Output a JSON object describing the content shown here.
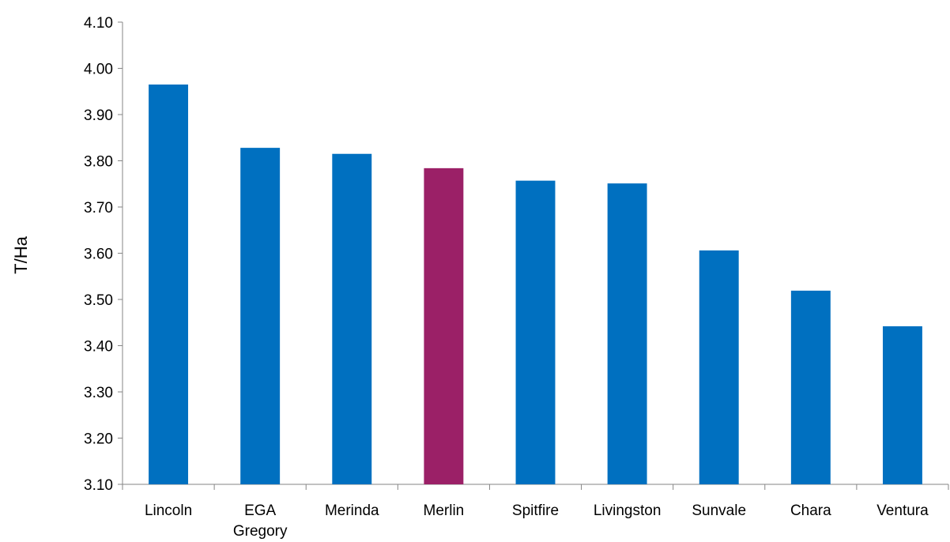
{
  "chart_data": {
    "type": "bar",
    "title": "",
    "xlabel": "",
    "ylabel": "T/Ha",
    "ylim": [
      3.1,
      4.1
    ],
    "yticks": [
      "3.10",
      "3.20",
      "3.30",
      "3.40",
      "3.50",
      "3.60",
      "3.70",
      "3.80",
      "3.90",
      "4.00",
      "4.10"
    ],
    "grid": false,
    "legend": "none",
    "categories": [
      [
        "Lincoln"
      ],
      [
        "EGA",
        "Gregory"
      ],
      [
        "Merinda"
      ],
      [
        "Merlin"
      ],
      [
        "Spitfire"
      ],
      [
        "Livingston"
      ],
      [
        "Sunvale"
      ],
      [
        "Chara"
      ],
      [
        "Ventura"
      ]
    ],
    "values": [
      3.965,
      3.828,
      3.815,
      3.784,
      3.757,
      3.751,
      3.606,
      3.519,
      3.442
    ],
    "colors": {
      "default": "#0070C0",
      "highlight": "#9B2067",
      "axis": "#868686"
    },
    "highlight_index": 3
  }
}
